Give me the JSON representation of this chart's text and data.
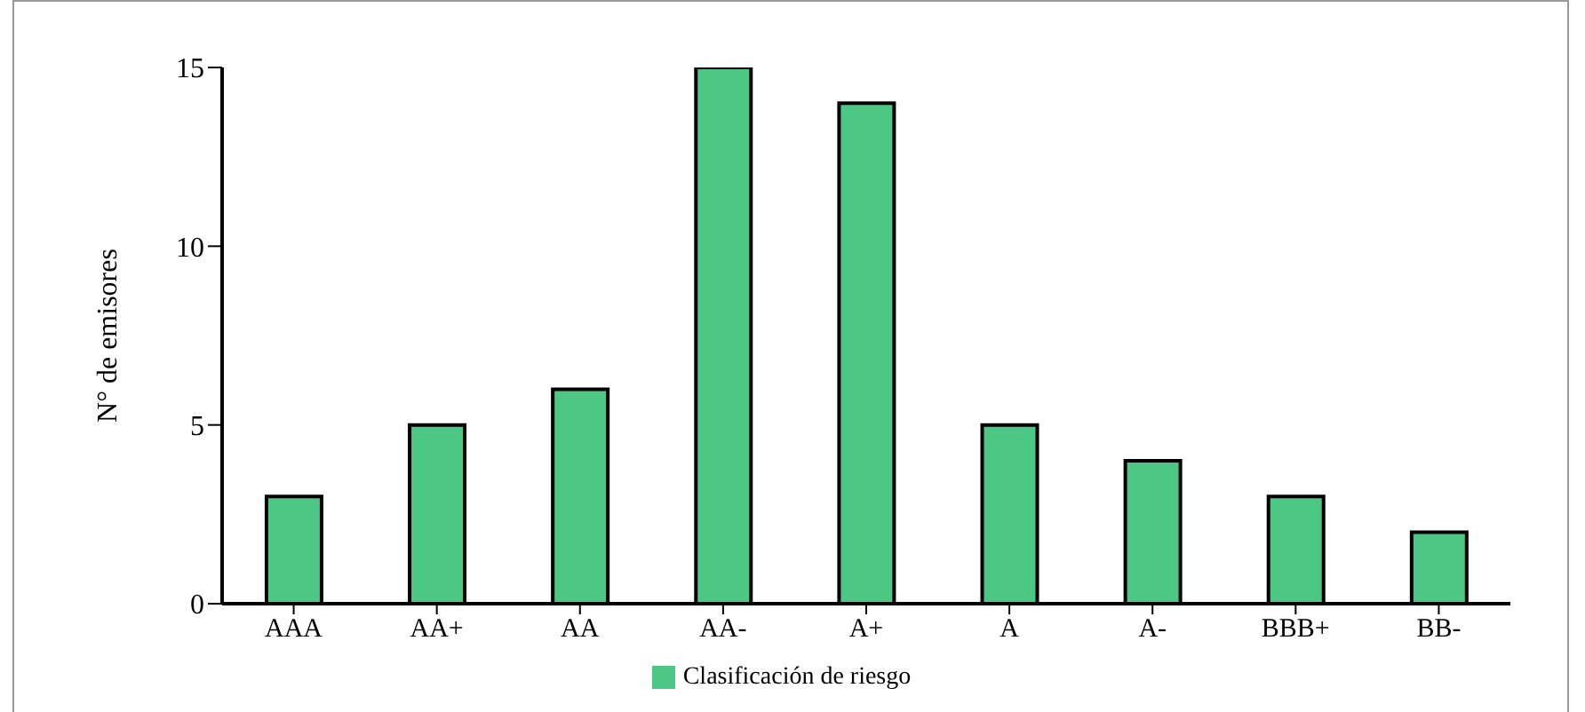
{
  "chart_data": {
    "type": "bar",
    "ylabel": "N° de emisores",
    "categories": [
      "AAA",
      "AA+",
      "AA",
      "AA-",
      "A+",
      "A",
      "A-",
      "BBB+",
      "BB-"
    ],
    "series": [
      {
        "name": "Clasificación de riesgo",
        "color": "#4cc884",
        "values": [
          3,
          5,
          6,
          15,
          14,
          5,
          4,
          3,
          2
        ]
      }
    ],
    "ylim": [
      0,
      15
    ],
    "yticks": [
      0,
      5,
      10,
      15
    ],
    "grid": false,
    "legend": "bottom"
  }
}
